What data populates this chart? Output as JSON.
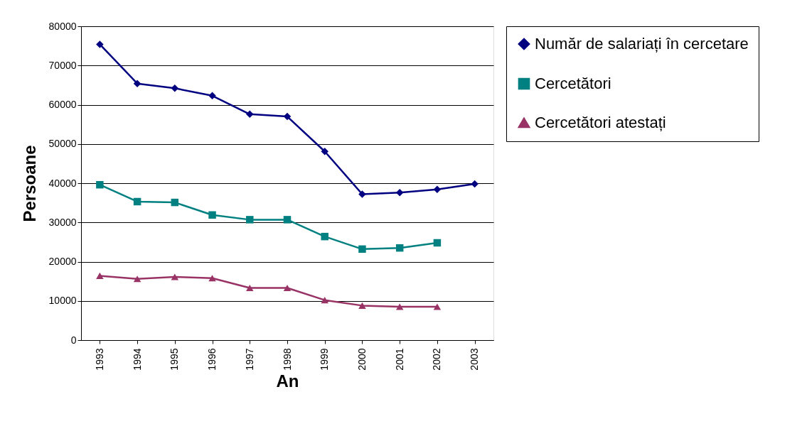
{
  "chart_data": {
    "type": "line",
    "xlabel": "An",
    "ylabel": "Persoane",
    "categories": [
      "1993",
      "1994",
      "1995",
      "1996",
      "1997",
      "1998",
      "1999",
      "2000",
      "2001",
      "2002",
      "2003"
    ],
    "series": [
      {
        "name": "Număr de salariați în cercetare",
        "color": "#000080",
        "marker": "diamond",
        "values": [
          75400,
          65400,
          64200,
          62300,
          57600,
          57000,
          48100,
          37200,
          37600,
          38400,
          39800
        ]
      },
      {
        "name": "Cercetători",
        "color": "#008080",
        "marker": "square",
        "values": [
          39600,
          35300,
          35100,
          31900,
          30700,
          30700,
          26400,
          23200,
          23500,
          24800,
          null
        ]
      },
      {
        "name": "Cercetători atestați",
        "color": "#993366",
        "marker": "triangle",
        "values": [
          16400,
          15600,
          16100,
          15800,
          13300,
          13300,
          10200,
          8800,
          8500,
          8500,
          null
        ]
      }
    ],
    "ylim": [
      0,
      80000
    ],
    "yticks": [
      0,
      10000,
      20000,
      30000,
      40000,
      50000,
      60000,
      70000,
      80000
    ],
    "grid": "y",
    "legend": "right",
    "line_style": "solid"
  }
}
